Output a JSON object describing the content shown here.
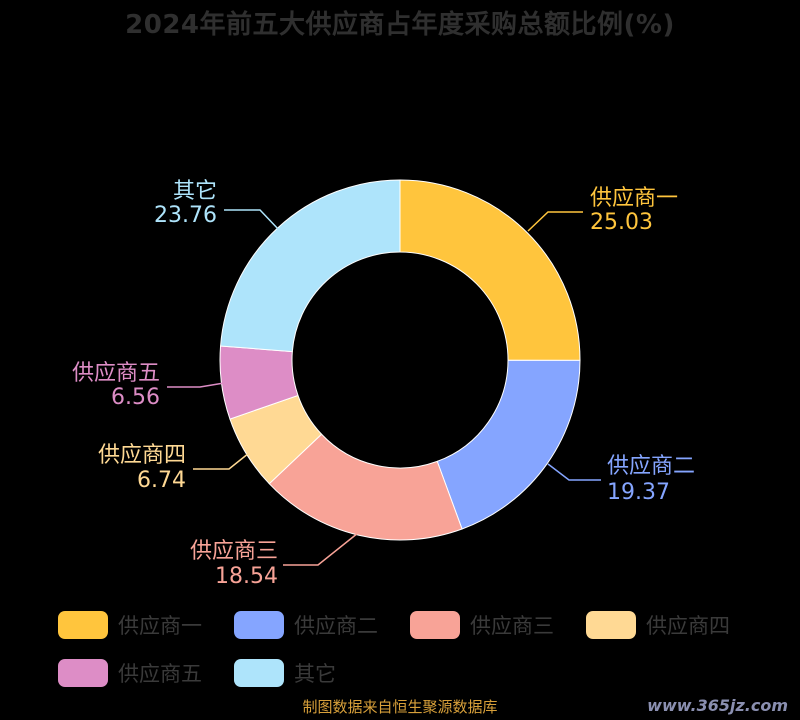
{
  "chart_data": {
    "type": "pie",
    "title": "2024年前五大供应商占年度采购总额比例(%)",
    "labels": [
      "供应商一",
      "供应商二",
      "供应商三",
      "供应商四",
      "供应商五",
      "其它"
    ],
    "values": [
      25.03,
      19.37,
      18.54,
      6.74,
      6.56,
      23.76
    ],
    "colors": [
      "#ffc53d",
      "#85a5ff",
      "#f8a397",
      "#ffd994",
      "#dd8dc6",
      "#aee4fb"
    ],
    "value_labels": [
      "25.03",
      "19.37",
      "18.54",
      "6.74",
      "6.56",
      "23.76"
    ],
    "legend_position": "bottom",
    "donut": true
  },
  "source": "制图数据来自恒生聚源数据库",
  "watermark": "www.365jz.com"
}
